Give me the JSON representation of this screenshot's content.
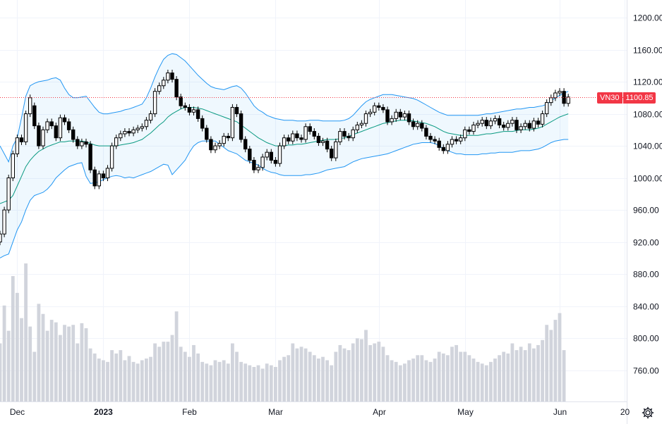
{
  "chart_data": {
    "type": "candlestick",
    "title": "",
    "symbol": "VN30",
    "last_price": "1100.85",
    "y_axis": {
      "ylim": [
        721,
        1222
      ],
      "ticks": [
        "760.00",
        "800.00",
        "840.00",
        "880.00",
        "920.00",
        "960.00",
        "1000.00",
        "1040.00",
        "1080.00",
        "1120.00",
        "1160.00",
        "1200.00"
      ]
    },
    "x_axis": {
      "labels": [
        {
          "text": "Dec",
          "index": 4,
          "bold": false
        },
        {
          "text": "2023",
          "index": 24,
          "bold": true
        },
        {
          "text": "Feb",
          "index": 44,
          "bold": false
        },
        {
          "text": "Mar",
          "index": 64,
          "bold": false
        },
        {
          "text": "Apr",
          "index": 88,
          "bold": false
        },
        {
          "text": "May",
          "index": 108,
          "bold": false
        },
        {
          "text": "Jun",
          "index": 130,
          "bold": false
        },
        {
          "text": "20",
          "index": 145,
          "bold": false
        }
      ]
    },
    "series_close": [
      930,
      960,
      1000,
      1030,
      1050,
      1045,
      1080,
      1100,
      1065,
      1040,
      1060,
      1070,
      1065,
      1050,
      1075,
      1070,
      1060,
      1048,
      1040,
      1045,
      1042,
      1010,
      990,
      1005,
      1000,
      1012,
      1040,
      1050,
      1055,
      1058,
      1056,
      1060,
      1062,
      1064,
      1072,
      1080,
      1108,
      1115,
      1122,
      1131,
      1123,
      1101,
      1090,
      1088,
      1082,
      1085,
      1074,
      1062,
      1048,
      1035,
      1040,
      1043,
      1052,
      1050,
      1088,
      1080,
      1048,
      1036,
      1022,
      1010,
      1013,
      1026,
      1032,
      1022,
      1018,
      1040,
      1050,
      1046,
      1055,
      1050,
      1048,
      1064,
      1058,
      1052,
      1044,
      1046,
      1036,
      1025,
      1045,
      1058,
      1052,
      1050,
      1060,
      1066,
      1068,
      1080,
      1082,
      1090,
      1088,
      1085,
      1070,
      1074,
      1082,
      1076,
      1080,
      1070,
      1064,
      1068,
      1062,
      1052,
      1048,
      1046,
      1038,
      1034,
      1042,
      1048,
      1046,
      1050,
      1060,
      1058,
      1066,
      1068,
      1072,
      1065,
      1071,
      1074,
      1066,
      1063,
      1068,
      1072,
      1060,
      1064,
      1068,
      1062,
      1071,
      1067,
      1080,
      1094,
      1100,
      1106,
      1108,
      1093,
      1100.85
    ],
    "series_open": [
      920,
      930,
      960,
      1000,
      1030,
      1050,
      1045,
      1080,
      1090,
      1065,
      1040,
      1060,
      1070,
      1065,
      1050,
      1075,
      1070,
      1060,
      1048,
      1040,
      1045,
      1042,
      1010,
      990,
      1005,
      1000,
      1012,
      1040,
      1050,
      1055,
      1058,
      1056,
      1060,
      1062,
      1064,
      1072,
      1080,
      1108,
      1115,
      1122,
      1131,
      1123,
      1101,
      1090,
      1088,
      1082,
      1085,
      1074,
      1062,
      1048,
      1035,
      1040,
      1043,
      1052,
      1050,
      1088,
      1080,
      1048,
      1036,
      1022,
      1010,
      1013,
      1026,
      1032,
      1022,
      1018,
      1040,
      1050,
      1046,
      1055,
      1050,
      1048,
      1064,
      1058,
      1052,
      1044,
      1046,
      1036,
      1025,
      1045,
      1058,
      1052,
      1050,
      1060,
      1066,
      1068,
      1080,
      1082,
      1090,
      1088,
      1085,
      1070,
      1074,
      1082,
      1076,
      1080,
      1070,
      1064,
      1068,
      1062,
      1052,
      1048,
      1046,
      1038,
      1034,
      1042,
      1048,
      1046,
      1050,
      1060,
      1058,
      1066,
      1068,
      1072,
      1065,
      1071,
      1074,
      1066,
      1063,
      1068,
      1072,
      1060,
      1064,
      1068,
      1062,
      1071,
      1067,
      1080,
      1094,
      1100,
      1106,
      1108,
      1093
    ],
    "series_volume": [
      790,
      835,
      805,
      870,
      850,
      820,
      885,
      810,
      780,
      837,
      825,
      805,
      818,
      815,
      800,
      812,
      810,
      812,
      790,
      814,
      808,
      784,
      778,
      772,
      770,
      768,
      782,
      778,
      782,
      770,
      775,
      768,
      766,
      770,
      772,
      774,
      790,
      786,
      792,
      792,
      800,
      828,
      786,
      780,
      774,
      788,
      778,
      768,
      766,
      764,
      770,
      768,
      770,
      766,
      790,
      780,
      768,
      766,
      764,
      762,
      764,
      760,
      766,
      764,
      762,
      770,
      774,
      776,
      790,
      784,
      786,
      784,
      780,
      776,
      772,
      774,
      770,
      764,
      780,
      788,
      784,
      782,
      790,
      796,
      795,
      806,
      788,
      790,
      792,
      786,
      776,
      770,
      768,
      764,
      766,
      770,
      772,
      776,
      776,
      770,
      768,
      772,
      780,
      778,
      776,
      786,
      788,
      780,
      780,
      776,
      772,
      768,
      766,
      764,
      768,
      772,
      776,
      780,
      778,
      790,
      782,
      786,
      782,
      790,
      784,
      788,
      794,
      812,
      806,
      818,
      826,
      782
    ],
    "series_sma20": [
      968,
      970,
      972,
      978,
      990,
      1002,
      1014,
      1022,
      1028,
      1033,
      1036,
      1039,
      1041,
      1043,
      1045,
      1045,
      1046,
      1046,
      1046,
      1046,
      1045,
      1043,
      1041,
      1040,
      1040,
      1040,
      1040,
      1040,
      1041,
      1042,
      1043,
      1044,
      1046,
      1048,
      1052,
      1056,
      1061,
      1066,
      1070,
      1076,
      1080,
      1083,
      1086,
      1088,
      1088,
      1088,
      1087,
      1086,
      1084,
      1082,
      1080,
      1078,
      1076,
      1074,
      1072,
      1070,
      1066,
      1062,
      1058,
      1054,
      1050,
      1047,
      1044,
      1042,
      1040,
      1040,
      1040,
      1041,
      1041,
      1042,
      1042,
      1043,
      1044,
      1045,
      1046,
      1047,
      1048,
      1048,
      1048,
      1049,
      1050,
      1052,
      1054,
      1056,
      1058,
      1060,
      1062,
      1064,
      1066,
      1068,
      1069,
      1070,
      1071,
      1072,
      1072,
      1072,
      1071,
      1070,
      1069,
      1068,
      1066,
      1064,
      1061,
      1058,
      1056,
      1055,
      1054,
      1053,
      1053,
      1053,
      1053,
      1053,
      1054,
      1055,
      1055,
      1056,
      1057,
      1058,
      1058,
      1058,
      1059,
      1060,
      1060,
      1060,
      1061,
      1062,
      1064,
      1067,
      1070,
      1073,
      1076,
      1078,
      1080
    ],
    "series_upper": [
      1040,
      1030,
      1020,
      1040,
      1050,
      1075,
      1102,
      1115,
      1118,
      1120,
      1121,
      1122,
      1124,
      1125,
      1122,
      1112,
      1104,
      1100,
      1100,
      1101,
      1102,
      1095,
      1088,
      1082,
      1080,
      1080,
      1081,
      1082,
      1083,
      1085,
      1086,
      1088,
      1090,
      1092,
      1100,
      1112,
      1126,
      1138,
      1148,
      1153,
      1155,
      1154,
      1150,
      1146,
      1140,
      1134,
      1128,
      1123,
      1118,
      1114,
      1112,
      1111,
      1110,
      1112,
      1114,
      1115,
      1112,
      1106,
      1098,
      1090,
      1085,
      1082,
      1078,
      1076,
      1074,
      1073,
      1072,
      1072,
      1072,
      1071,
      1071,
      1071,
      1072,
      1072,
      1072,
      1071,
      1071,
      1071,
      1071,
      1071,
      1072,
      1074,
      1078,
      1084,
      1090,
      1095,
      1098,
      1100,
      1102,
      1104,
      1104,
      1104,
      1103,
      1102,
      1101,
      1100,
      1099,
      1097,
      1094,
      1091,
      1088,
      1085,
      1082,
      1080,
      1078,
      1078,
      1078,
      1078,
      1078,
      1078,
      1078,
      1078,
      1079,
      1080,
      1080,
      1081,
      1082,
      1083,
      1084,
      1085,
      1086,
      1086,
      1087,
      1088,
      1088,
      1089,
      1090,
      1092,
      1096,
      1100,
      1103,
      1106,
      1108
    ],
    "series_lower": [
      900,
      903,
      905,
      920,
      935,
      945,
      960,
      972,
      978,
      980,
      982,
      986,
      992,
      1000,
      1005,
      1010,
      1014,
      1016,
      1018,
      1019,
      1002,
      993,
      994,
      995,
      998,
      1000,
      1002,
      1003,
      1002,
      1000,
      1001,
      1000,
      1002,
      1004,
      1006,
      1008,
      1011,
      1014,
      1017,
      1016,
      1004,
      1010,
      1016,
      1022,
      1032,
      1040,
      1044,
      1046,
      1046,
      1046,
      1046,
      1042,
      1038,
      1034,
      1032,
      1030,
      1026,
      1022,
      1020,
      1018,
      1016,
      1012,
      1009,
      1007,
      1006,
      1004,
      1003,
      1003,
      1003,
      1003,
      1003,
      1004,
      1004,
      1005,
      1006,
      1008,
      1010,
      1011,
      1012,
      1013,
      1014,
      1017,
      1020,
      1022,
      1024,
      1025,
      1026,
      1027,
      1028,
      1029,
      1030,
      1032,
      1034,
      1036,
      1038,
      1040,
      1042,
      1043,
      1044,
      1044,
      1044,
      1043,
      1040,
      1036,
      1034,
      1032,
      1030,
      1030,
      1029,
      1029,
      1029,
      1029,
      1030,
      1030,
      1031,
      1031,
      1032,
      1032,
      1032,
      1032,
      1033,
      1034,
      1034,
      1034,
      1035,
      1036,
      1038,
      1041,
      1044,
      1046,
      1047,
      1048,
      1048
    ]
  }
}
